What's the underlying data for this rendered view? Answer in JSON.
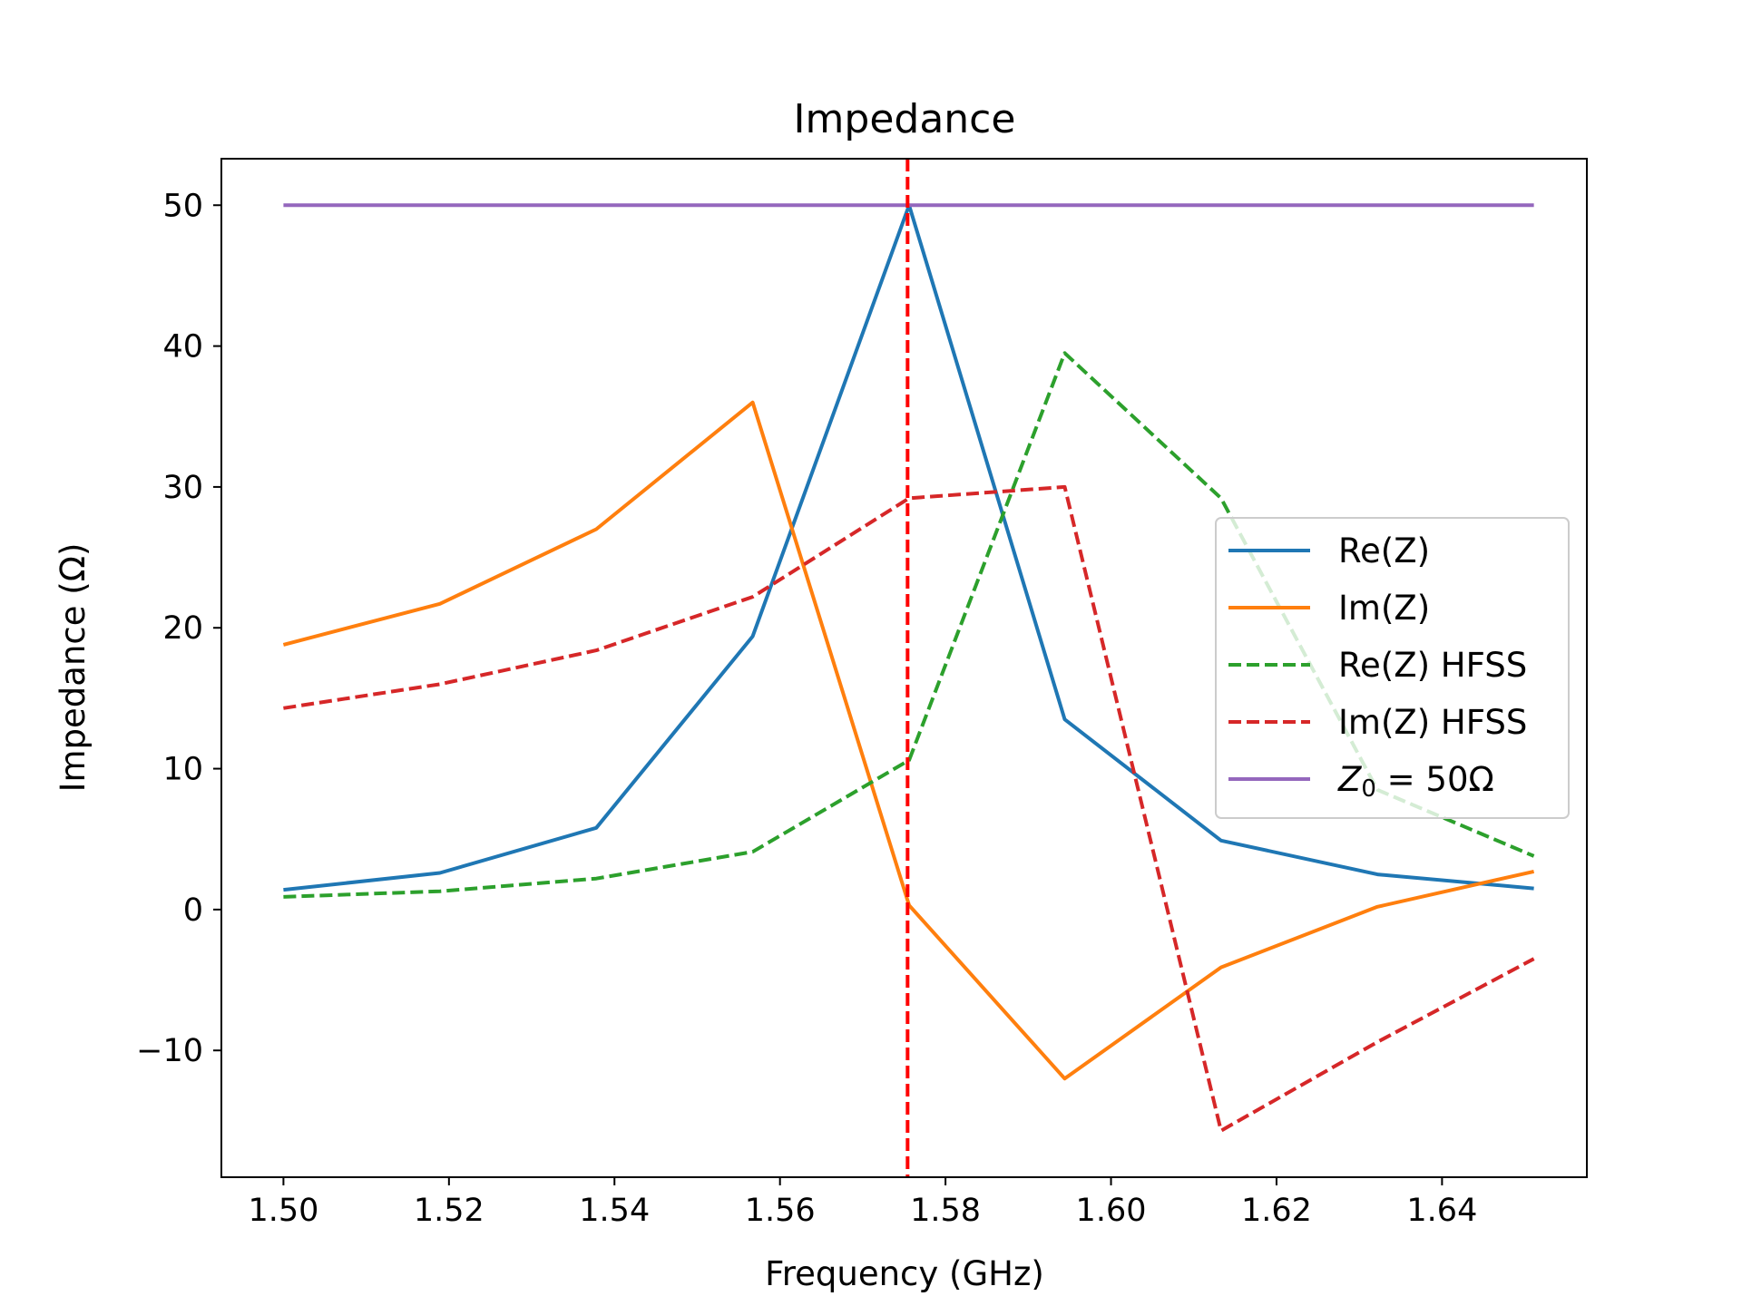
{
  "chart_data": {
    "type": "line",
    "title": "Impedance",
    "xlabel": "Frequency (GHz)",
    "ylabel": "Impedance (Ω)",
    "xlim": [
      1.4925,
      1.6575
    ],
    "ylim": [
      -19,
      53.3
    ],
    "xticks": [
      1.5,
      1.52,
      1.54,
      1.56,
      1.58,
      1.6,
      1.62,
      1.64
    ],
    "xtick_labels": [
      "1.50",
      "1.52",
      "1.54",
      "1.56",
      "1.58",
      "1.60",
      "1.62",
      "1.64"
    ],
    "yticks": [
      -10,
      0,
      10,
      20,
      30,
      40,
      50
    ],
    "ytick_labels": [
      "−10",
      "0",
      "10",
      "20",
      "30",
      "40",
      "50"
    ],
    "grid": false,
    "legend_position": "center-right",
    "x": [
      1.5,
      1.5189,
      1.5378,
      1.5567,
      1.5756,
      1.5944,
      1.6133,
      1.6322,
      1.6511
    ],
    "series": [
      {
        "name": "Re(Z)",
        "color": "#1f77b4",
        "style": "solid",
        "values": [
          1.4,
          2.6,
          5.8,
          19.4,
          50.0,
          13.5,
          4.9,
          2.5,
          1.5
        ]
      },
      {
        "name": "Im(Z)",
        "color": "#ff7f0e",
        "style": "solid",
        "values": [
          18.8,
          21.7,
          27.0,
          36.0,
          0.3,
          -12.0,
          -4.1,
          0.2,
          2.7
        ]
      },
      {
        "name": "Re(Z) HFSS",
        "color": "#2ca02c",
        "style": "dashed",
        "values": [
          0.9,
          1.3,
          2.2,
          4.1,
          10.6,
          39.5,
          29.2,
          8.5,
          3.8
        ]
      },
      {
        "name": "Im(Z) HFSS",
        "color": "#d62728",
        "style": "dashed",
        "values": [
          14.3,
          16.0,
          18.4,
          22.2,
          29.2,
          30.0,
          -15.7,
          -9.4,
          -3.5
        ]
      }
    ],
    "reference_lines": [
      {
        "kind": "horizontal",
        "value": 50,
        "name_prefix": "Z",
        "name_sub": "0",
        "name_suffix": " = 50Ω",
        "color": "#9467bd",
        "style": "solid"
      },
      {
        "kind": "vertical",
        "value": 1.57542,
        "color": "#ff0000",
        "style": "dashed"
      }
    ]
  }
}
